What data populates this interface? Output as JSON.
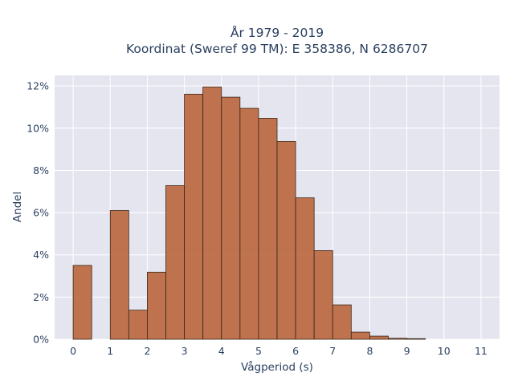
{
  "chart_data": {
    "type": "bar",
    "title_line1": "År 1979 - 2019",
    "title_line2": "Koordinat (Sweref 99 TM): E 358386, N 6286707",
    "xlabel": "Vågperiod (s)",
    "ylabel": "Andel",
    "xlim": [
      -0.5,
      11.5
    ],
    "ylim": [
      0,
      0.125
    ],
    "bin_width": 0.5,
    "x_ticks": [
      0,
      1,
      2,
      3,
      4,
      5,
      6,
      7,
      8,
      9,
      10,
      11
    ],
    "x_tick_labels": [
      "0",
      "1",
      "2",
      "3",
      "4",
      "5",
      "6",
      "7",
      "8",
      "9",
      "10",
      "11"
    ],
    "y_ticks": [
      0,
      0.02,
      0.04,
      0.06,
      0.08,
      0.1,
      0.12
    ],
    "y_tick_labels": [
      "0%",
      "2%",
      "4%",
      "6%",
      "8%",
      "10%",
      "12%"
    ],
    "bins": [
      {
        "x0": 0.0,
        "value": 0.035
      },
      {
        "x0": 1.0,
        "value": 0.061
      },
      {
        "x0": 1.5,
        "value": 0.0138
      },
      {
        "x0": 2.0,
        "value": 0.0318
      },
      {
        "x0": 2.5,
        "value": 0.0728
      },
      {
        "x0": 3.0,
        "value": 0.1161
      },
      {
        "x0": 3.5,
        "value": 0.1195
      },
      {
        "x0": 4.0,
        "value": 0.1147
      },
      {
        "x0": 4.5,
        "value": 0.1094
      },
      {
        "x0": 5.0,
        "value": 0.1047
      },
      {
        "x0": 5.5,
        "value": 0.0937
      },
      {
        "x0": 6.0,
        "value": 0.067
      },
      {
        "x0": 6.5,
        "value": 0.042
      },
      {
        "x0": 7.0,
        "value": 0.0163
      },
      {
        "x0": 7.5,
        "value": 0.0034
      },
      {
        "x0": 8.0,
        "value": 0.0015
      },
      {
        "x0": 8.5,
        "value": 0.0005
      },
      {
        "x0": 9.0,
        "value": 0.0003
      }
    ],
    "grid": true,
    "background_color": "#e5e5f0",
    "bar_color": "#b9663c"
  }
}
